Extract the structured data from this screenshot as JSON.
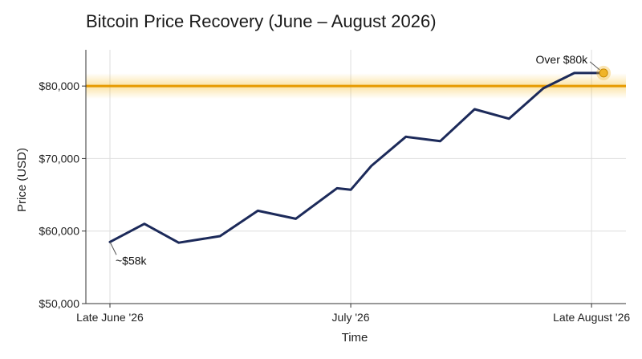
{
  "chart_data": {
    "type": "line",
    "title": "Bitcoin Price Recovery (June – August 2026)",
    "xlabel": "Time",
    "ylabel": "Price (USD)",
    "ylim": [
      50000,
      85000
    ],
    "y_ticks": [
      {
        "value": 50000,
        "label": "$50,000"
      },
      {
        "value": 60000,
        "label": "$60,000"
      },
      {
        "value": 70000,
        "label": "$70,000"
      },
      {
        "value": 80000,
        "label": "$80,000"
      }
    ],
    "x_ticks": [
      {
        "index": 0,
        "label": "Late June '26"
      },
      {
        "index": 7,
        "label": "July '26"
      },
      {
        "index": 14,
        "label": "Late August '26"
      }
    ],
    "x_range": [
      -0.7,
      15.0
    ],
    "series": [
      {
        "color": "#1c2a5a",
        "x": [
          0,
          1,
          2,
          3.2,
          4.3,
          5.4,
          6.6,
          7,
          7.6,
          8.6,
          9.6,
          10.6,
          11.6,
          12.6,
          13.5,
          14.35
        ],
        "values": [
          58500,
          61000,
          58400,
          59300,
          62800,
          61700,
          65900,
          65700,
          69000,
          73000,
          72400,
          76800,
          75500,
          79700,
          81800,
          81800
        ]
      }
    ],
    "reference_line": {
      "value": 80000,
      "color": "#e69a00"
    },
    "highlight_point": {
      "x": 14.35,
      "value": 81800,
      "color": "#f0b429"
    },
    "annotations": [
      {
        "text": "~$58k",
        "x": 0,
        "value": 58500
      },
      {
        "text": "Over $80k",
        "x": 14.35,
        "value": 81800
      }
    ],
    "grid": true,
    "legend": "none"
  }
}
